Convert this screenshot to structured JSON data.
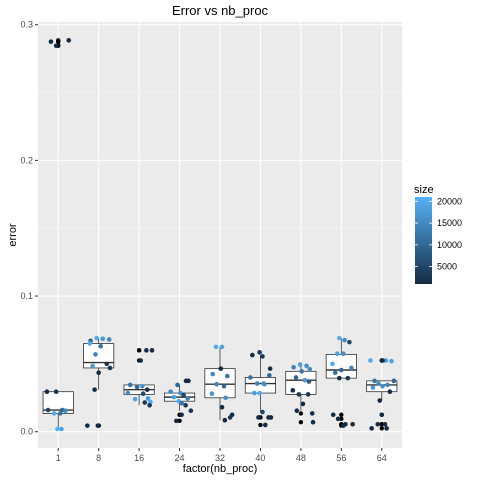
{
  "chart_data": {
    "type": "boxplot",
    "title": "Error vs nb_proc",
    "xlabel": "factor(nb_proc)",
    "ylabel": "error",
    "categories": [
      "1",
      "8",
      "16",
      "24",
      "32",
      "40",
      "48",
      "56",
      "64"
    ],
    "ylim": [
      -0.012,
      0.302
    ],
    "yticks": [
      0.0,
      0.1,
      0.2,
      0.3
    ],
    "ytick_labels": [
      "0.0",
      "0.1",
      "0.2",
      "0.3"
    ],
    "grid": true,
    "legend": {
      "title": "size",
      "position": "right",
      "range": [
        1000,
        21000
      ],
      "ticks": [
        5000,
        10000,
        15000,
        20000
      ],
      "tick_labels": [
        "5000",
        "10000",
        "15000",
        "20000"
      ],
      "color_low": "#132B43",
      "color_high": "#56B1F7"
    },
    "boxes": [
      {
        "category": "1",
        "q1": 0.0135,
        "median": 0.016,
        "q3": 0.0295,
        "whisker_low": 0.002,
        "whisker_high": 0.0295
      },
      {
        "category": "8",
        "q1": 0.047,
        "median": 0.051,
        "q3": 0.065,
        "whisker_low": 0.031,
        "whisker_high": 0.069
      },
      {
        "category": "16",
        "q1": 0.0275,
        "median": 0.031,
        "q3": 0.0345,
        "whisker_low": 0.0195,
        "whisker_high": 0.0345
      },
      {
        "category": "24",
        "q1": 0.0225,
        "median": 0.0255,
        "q3": 0.0285,
        "whisker_low": 0.0155,
        "whisker_high": 0.0345
      },
      {
        "category": "32",
        "q1": 0.025,
        "median": 0.035,
        "q3": 0.0465,
        "whisker_low": 0.0085,
        "whisker_high": 0.0625
      },
      {
        "category": "40",
        "q1": 0.0285,
        "median": 0.0355,
        "q3": 0.04,
        "whisker_low": 0.0145,
        "whisker_high": 0.0565
      },
      {
        "category": "48",
        "q1": 0.0275,
        "median": 0.038,
        "q3": 0.0445,
        "whisker_low": 0.0155,
        "whisker_high": 0.0495
      },
      {
        "category": "56",
        "q1": 0.0395,
        "median": 0.0455,
        "q3": 0.057,
        "whisker_low": 0.0395,
        "whisker_high": 0.069
      },
      {
        "category": "64",
        "q1": 0.0295,
        "median": 0.0345,
        "q3": 0.0375,
        "whisker_low": 0.023,
        "whisker_high": 0.0375
      }
    ],
    "outliers": [
      {
        "category": "1",
        "y": 0.2875
      },
      {
        "category": "1",
        "y": 0.2845
      },
      {
        "category": "1",
        "y": 0.2875
      },
      {
        "category": "1",
        "y": 0.285
      },
      {
        "category": "1",
        "y": 0.2885
      },
      {
        "category": "8",
        "y": 0.0045
      },
      {
        "category": "8",
        "y": 0.0045
      },
      {
        "category": "16",
        "y": 0.06
      },
      {
        "category": "16",
        "y": 0.06
      },
      {
        "category": "16",
        "y": 0.0525
      },
      {
        "category": "24",
        "y": 0.008
      },
      {
        "category": "24",
        "y": 0.0125
      },
      {
        "category": "40",
        "y": 0.0105
      },
      {
        "category": "40",
        "y": 0.0105
      },
      {
        "category": "40",
        "y": 0.005
      },
      {
        "category": "48",
        "y": 0.0135
      },
      {
        "category": "48",
        "y": 0.007
      },
      {
        "category": "56",
        "y": 0.0125
      },
      {
        "category": "56",
        "y": 0.0095
      },
      {
        "category": "56",
        "y": 0.0055
      },
      {
        "category": "56",
        "y": 0.0055
      },
      {
        "category": "56",
        "y": 0.0045
      },
      {
        "category": "64",
        "y": 0.0525
      },
      {
        "category": "64",
        "y": 0.0525
      },
      {
        "category": "64",
        "y": 0.0125
      },
      {
        "category": "64",
        "y": 0.0055
      },
      {
        "category": "64",
        "y": 0.0055
      },
      {
        "category": "64",
        "y": 0.0025
      }
    ],
    "points": [
      {
        "category": "1",
        "jitter": -0.28,
        "y": 0.0295,
        "size": 1000
      },
      {
        "category": "1",
        "jitter": -0.05,
        "y": 0.0295,
        "size": 2500
      },
      {
        "category": "1",
        "jitter": -0.25,
        "y": 0.016,
        "size": 5000
      },
      {
        "category": "1",
        "jitter": 0.1,
        "y": 0.016,
        "size": 10000
      },
      {
        "category": "1",
        "jitter": 0.18,
        "y": 0.0155,
        "size": 15000
      },
      {
        "category": "1",
        "jitter": -0.1,
        "y": 0.0135,
        "size": 20000
      },
      {
        "category": "1",
        "jitter": 0.05,
        "y": 0.0135,
        "size": 12000
      },
      {
        "category": "1",
        "jitter": -0.02,
        "y": 0.002,
        "size": 21000
      },
      {
        "category": "1",
        "jitter": 0.08,
        "y": 0.002,
        "size": 19000
      },
      {
        "category": "1",
        "jitter": -0.18,
        "y": 0.2875,
        "size": 1000
      },
      {
        "category": "1",
        "jitter": -0.05,
        "y": 0.2845,
        "size": 1000
      },
      {
        "category": "1",
        "jitter": 0.26,
        "y": 0.2885,
        "size": 1000
      },
      {
        "category": "8",
        "jitter": -0.2,
        "y": 0.067,
        "size": 10000
      },
      {
        "category": "8",
        "jitter": -0.05,
        "y": 0.069,
        "size": 20000
      },
      {
        "category": "8",
        "jitter": 0.1,
        "y": 0.0685,
        "size": 17000
      },
      {
        "category": "8",
        "jitter": 0.26,
        "y": 0.068,
        "size": 15000
      },
      {
        "category": "8",
        "jitter": -0.22,
        "y": 0.065,
        "size": 20000
      },
      {
        "category": "8",
        "jitter": 0.05,
        "y": 0.063,
        "size": 12000
      },
      {
        "category": "8",
        "jitter": -0.08,
        "y": 0.057,
        "size": 14000
      },
      {
        "category": "8",
        "jitter": 0.2,
        "y": 0.05,
        "size": 3000
      },
      {
        "category": "8",
        "jitter": -0.15,
        "y": 0.0485,
        "size": 18000
      },
      {
        "category": "8",
        "jitter": 0.28,
        "y": 0.047,
        "size": 2500
      },
      {
        "category": "8",
        "jitter": 0.0,
        "y": 0.0435,
        "size": 1000
      },
      {
        "category": "8",
        "jitter": -0.1,
        "y": 0.031,
        "size": 1000
      },
      {
        "category": "8",
        "jitter": -0.28,
        "y": 0.0045,
        "size": 1000
      },
      {
        "category": "8",
        "jitter": -0.02,
        "y": 0.0045,
        "size": 1000
      },
      {
        "category": "16",
        "jitter": 0.18,
        "y": 0.06,
        "size": 1000
      },
      {
        "category": "16",
        "jitter": 0.32,
        "y": 0.06,
        "size": 1000
      },
      {
        "category": "16",
        "jitter": 0.04,
        "y": 0.0525,
        "size": 1000
      },
      {
        "category": "16",
        "jitter": -0.22,
        "y": 0.0345,
        "size": 12000
      },
      {
        "category": "16",
        "jitter": 0.08,
        "y": 0.0335,
        "size": 16000
      },
      {
        "category": "16",
        "jitter": -0.05,
        "y": 0.033,
        "size": 10000
      },
      {
        "category": "16",
        "jitter": 0.2,
        "y": 0.031,
        "size": 1000
      },
      {
        "category": "16",
        "jitter": -0.28,
        "y": 0.0285,
        "size": 15000
      },
      {
        "category": "16",
        "jitter": 0.1,
        "y": 0.028,
        "size": 5000
      },
      {
        "category": "16",
        "jitter": 0.22,
        "y": 0.0245,
        "size": 18000
      },
      {
        "category": "16",
        "jitter": -0.1,
        "y": 0.024,
        "size": 19000
      },
      {
        "category": "16",
        "jitter": 0.28,
        "y": 0.022,
        "size": 20000
      },
      {
        "category": "16",
        "jitter": 0.14,
        "y": 0.0215,
        "size": 3000
      },
      {
        "category": "16",
        "jitter": 0.26,
        "y": 0.0195,
        "size": 2500
      },
      {
        "category": "24",
        "jitter": 0.16,
        "y": 0.0375,
        "size": 1000
      },
      {
        "category": "24",
        "jitter": 0.22,
        "y": 0.0375,
        "size": 1000
      },
      {
        "category": "24",
        "jitter": -0.05,
        "y": 0.0345,
        "size": 10000
      },
      {
        "category": "24",
        "jitter": -0.22,
        "y": 0.0295,
        "size": 15000
      },
      {
        "category": "24",
        "jitter": 0.02,
        "y": 0.0285,
        "size": 16000
      },
      {
        "category": "24",
        "jitter": 0.1,
        "y": 0.027,
        "size": 5000
      },
      {
        "category": "24",
        "jitter": -0.14,
        "y": 0.0255,
        "size": 18000
      },
      {
        "category": "24",
        "jitter": 0.2,
        "y": 0.0245,
        "size": 14000
      },
      {
        "category": "24",
        "jitter": -0.02,
        "y": 0.0225,
        "size": 20000
      },
      {
        "category": "24",
        "jitter": 0.05,
        "y": 0.021,
        "size": 12000
      },
      {
        "category": "24",
        "jitter": 0.15,
        "y": 0.0195,
        "size": 3000
      },
      {
        "category": "24",
        "jitter": 0.28,
        "y": 0.0155,
        "size": 2500
      },
      {
        "category": "24",
        "jitter": 0.05,
        "y": 0.0125,
        "size": 1000
      },
      {
        "category": "24",
        "jitter": -0.08,
        "y": 0.008,
        "size": 1000
      },
      {
        "category": "32",
        "jitter": -0.1,
        "y": 0.0625,
        "size": 20000
      },
      {
        "category": "32",
        "jitter": 0.05,
        "y": 0.0625,
        "size": 19000
      },
      {
        "category": "32",
        "jitter": 0.02,
        "y": 0.0465,
        "size": 1000
      },
      {
        "category": "32",
        "jitter": -0.18,
        "y": 0.0425,
        "size": 15000
      },
      {
        "category": "32",
        "jitter": 0.18,
        "y": 0.041,
        "size": 12000
      },
      {
        "category": "32",
        "jitter": -0.08,
        "y": 0.035,
        "size": 14000
      },
      {
        "category": "32",
        "jitter": 0.1,
        "y": 0.0335,
        "size": 10000
      },
      {
        "category": "32",
        "jitter": -0.2,
        "y": 0.028,
        "size": 17000
      },
      {
        "category": "32",
        "jitter": 0.14,
        "y": 0.025,
        "size": 16000
      },
      {
        "category": "32",
        "jitter": 0.05,
        "y": 0.018,
        "size": 1000
      },
      {
        "category": "32",
        "jitter": 0.3,
        "y": 0.0125,
        "size": 1000
      },
      {
        "category": "32",
        "jitter": 0.25,
        "y": 0.0105,
        "size": 3000
      },
      {
        "category": "32",
        "jitter": 0.12,
        "y": 0.0085,
        "size": 1000
      },
      {
        "category": "40",
        "jitter": -0.2,
        "y": 0.0565,
        "size": 1000
      },
      {
        "category": "40",
        "jitter": -0.02,
        "y": 0.0585,
        "size": 3000
      },
      {
        "category": "40",
        "jitter": 0.05,
        "y": 0.0555,
        "size": 2500
      },
      {
        "category": "40",
        "jitter": 0.24,
        "y": 0.0465,
        "size": 1000
      },
      {
        "category": "40",
        "jitter": 0.22,
        "y": 0.0415,
        "size": 10000
      },
      {
        "category": "40",
        "jitter": -0.25,
        "y": 0.04,
        "size": 12000
      },
      {
        "category": "40",
        "jitter": -0.08,
        "y": 0.0355,
        "size": 14000
      },
      {
        "category": "40",
        "jitter": 0.08,
        "y": 0.0355,
        "size": 15000
      },
      {
        "category": "40",
        "jitter": 0.1,
        "y": 0.035,
        "size": 16000
      },
      {
        "category": "40",
        "jitter": -0.15,
        "y": 0.0285,
        "size": 18000
      },
      {
        "category": "40",
        "jitter": -0.02,
        "y": 0.0285,
        "size": 20000
      },
      {
        "category": "40",
        "jitter": 0.05,
        "y": 0.0145,
        "size": 5000
      },
      {
        "category": "40",
        "jitter": -0.05,
        "y": 0.0105,
        "size": 1000
      },
      {
        "category": "40",
        "jitter": 0.2,
        "y": 0.0105,
        "size": 1000
      },
      {
        "category": "40",
        "jitter": 0.26,
        "y": 0.0105,
        "size": 1000
      },
      {
        "category": "40",
        "jitter": 0.12,
        "y": 0.005,
        "size": 1000
      },
      {
        "category": "48",
        "jitter": -0.02,
        "y": 0.0495,
        "size": 18000
      },
      {
        "category": "48",
        "jitter": 0.14,
        "y": 0.0485,
        "size": 16000
      },
      {
        "category": "48",
        "jitter": -0.18,
        "y": 0.0475,
        "size": 14000
      },
      {
        "category": "48",
        "jitter": 0.22,
        "y": 0.046,
        "size": 15000
      },
      {
        "category": "48",
        "jitter": 0.02,
        "y": 0.0445,
        "size": 12000
      },
      {
        "category": "48",
        "jitter": -0.12,
        "y": 0.04,
        "size": 10000
      },
      {
        "category": "48",
        "jitter": 0.1,
        "y": 0.038,
        "size": 17000
      },
      {
        "category": "48",
        "jitter": 0.2,
        "y": 0.037,
        "size": 8000
      },
      {
        "category": "48",
        "jitter": -0.2,
        "y": 0.0305,
        "size": 1000
      },
      {
        "category": "48",
        "jitter": -0.05,
        "y": 0.0275,
        "size": 3000
      },
      {
        "category": "48",
        "jitter": 0.18,
        "y": 0.0275,
        "size": 2500
      },
      {
        "category": "48",
        "jitter": 0.05,
        "y": 0.0205,
        "size": 1000
      },
      {
        "category": "48",
        "jitter": -0.1,
        "y": 0.0155,
        "size": 1000
      },
      {
        "category": "48",
        "jitter": 0.28,
        "y": 0.0135,
        "size": 1000
      },
      {
        "category": "48",
        "jitter": 0.3,
        "y": 0.007,
        "size": 1000
      },
      {
        "category": "56",
        "jitter": -0.05,
        "y": 0.069,
        "size": 20000
      },
      {
        "category": "56",
        "jitter": 0.08,
        "y": 0.0675,
        "size": 15000
      },
      {
        "category": "56",
        "jitter": 0.2,
        "y": 0.066,
        "size": 5000
      },
      {
        "category": "56",
        "jitter": -0.1,
        "y": 0.0575,
        "size": 18000
      },
      {
        "category": "56",
        "jitter": 0.05,
        "y": 0.0575,
        "size": 16000
      },
      {
        "category": "56",
        "jitter": -0.22,
        "y": 0.05,
        "size": 20000
      },
      {
        "category": "56",
        "jitter": 0.25,
        "y": 0.047,
        "size": 14000
      },
      {
        "category": "56",
        "jitter": 0.0,
        "y": 0.0455,
        "size": 10000
      },
      {
        "category": "56",
        "jitter": -0.15,
        "y": 0.0435,
        "size": 12000
      },
      {
        "category": "56",
        "jitter": -0.05,
        "y": 0.0395,
        "size": 1000
      },
      {
        "category": "56",
        "jitter": 0.16,
        "y": 0.0395,
        "size": 3000
      },
      {
        "category": "56",
        "jitter": -0.2,
        "y": 0.0125,
        "size": 1000
      },
      {
        "category": "56",
        "jitter": -0.08,
        "y": 0.0095,
        "size": 1000
      },
      {
        "category": "56",
        "jitter": 0.1,
        "y": 0.0055,
        "size": 1000
      },
      {
        "category": "56",
        "jitter": 0.28,
        "y": 0.0055,
        "size": 1000
      },
      {
        "category": "56",
        "jitter": 0.05,
        "y": 0.0045,
        "size": 1000
      },
      {
        "category": "64",
        "jitter": -0.28,
        "y": 0.0525,
        "size": 20000
      },
      {
        "category": "64",
        "jitter": 0.1,
        "y": 0.0525,
        "size": 18000
      },
      {
        "category": "64",
        "jitter": 0.24,
        "y": 0.052,
        "size": 19000
      },
      {
        "category": "64",
        "jitter": 0.02,
        "y": 0.0525,
        "size": 1000
      },
      {
        "category": "64",
        "jitter": -0.18,
        "y": 0.0375,
        "size": 12000
      },
      {
        "category": "64",
        "jitter": 0.3,
        "y": 0.0375,
        "size": 10000
      },
      {
        "category": "64",
        "jitter": -0.08,
        "y": 0.0355,
        "size": 15000
      },
      {
        "category": "64",
        "jitter": 0.14,
        "y": 0.0345,
        "size": 14000
      },
      {
        "category": "64",
        "jitter": 0.02,
        "y": 0.0335,
        "size": 16000
      },
      {
        "category": "64",
        "jitter": -0.22,
        "y": 0.0325,
        "size": 17000
      },
      {
        "category": "64",
        "jitter": 0.2,
        "y": 0.0295,
        "size": 1000
      },
      {
        "category": "64",
        "jitter": -0.05,
        "y": 0.023,
        "size": 1000
      },
      {
        "category": "64",
        "jitter": 0.0,
        "y": 0.0125,
        "size": 1000
      },
      {
        "category": "64",
        "jitter": 0.08,
        "y": 0.0055,
        "size": 1000
      },
      {
        "category": "64",
        "jitter": -0.1,
        "y": 0.0055,
        "size": 1000
      },
      {
        "category": "64",
        "jitter": 0.12,
        "y": 0.0025,
        "size": 1000
      },
      {
        "category": "64",
        "jitter": -0.25,
        "y": 0.0025,
        "size": 1000
      }
    ]
  }
}
